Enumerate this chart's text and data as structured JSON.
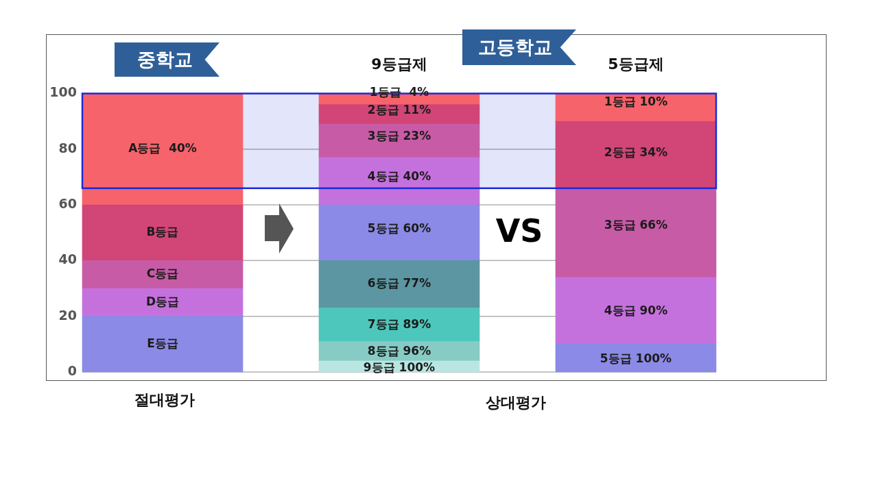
{
  "chart_data": {
    "type": "bar",
    "stacked": true,
    "categories": [
      null,
      "9등급제",
      "5등급제"
    ],
    "series": [
      {
        "values": [
          20,
          4,
          10
        ],
        "colors": [
          "#8b8ae6",
          "#b9e6e1",
          "#8b8ae6"
        ],
        "value_labels": [
          "E등급",
          null,
          null
        ]
      },
      {
        "values": [
          10,
          7,
          24
        ],
        "colors": [
          "#c571dd",
          "#87cbc5",
          "#c571dd"
        ],
        "value_labels": [
          "D등급",
          null,
          null
        ]
      },
      {
        "values": [
          10,
          12,
          32
        ],
        "colors": [
          "#c75ba6",
          "#4dc7bb",
          "#c75ba6"
        ],
        "value_labels": [
          "C등급",
          null,
          null
        ]
      },
      {
        "values": [
          20,
          17,
          24
        ],
        "colors": [
          "#d14677",
          "#5b96a2",
          "#d14677"
        ],
        "value_labels": [
          "B등급",
          null,
          null
        ]
      },
      {
        "values": [
          40,
          20,
          10
        ],
        "colors": [
          "#f7636b",
          "#8b8ae6",
          "#f7636b"
        ],
        "value_labels": [
          "A등급  40%",
          null,
          null
        ]
      },
      {
        "values": [
          null,
          17,
          null
        ],
        "colors": [
          null,
          "#c571dd",
          null
        ]
      },
      {
        "values": [
          null,
          12,
          null
        ],
        "colors": [
          null,
          "#c75ba6",
          null
        ]
      },
      {
        "values": [
          null,
          7,
          null
        ],
        "colors": [
          null,
          "#d14677",
          null
        ]
      },
      {
        "values": [
          null,
          4,
          null
        ],
        "colors": [
          null,
          "#f7636b",
          null
        ]
      }
    ],
    "ylim": [
      0,
      100
    ],
    "yticks": [
      0,
      20,
      40,
      60,
      80,
      100
    ],
    "grid": "y",
    "bands": [
      {
        "axis": "y",
        "from": 66,
        "to": 100,
        "color": "#1c2bd9"
      }
    ],
    "annotations": [
      "중학교",
      "고등학교",
      "절대평가",
      "상대평가",
      "VS",
      "1등급  4%",
      "2등급 11%",
      "3등급 23%",
      "4등급 40%",
      "5등급 60%",
      "6등급 77%",
      "7등급 89%",
      "8등급 96%",
      "9등급 100%",
      "1등급 10%",
      "2등급 34%",
      "3등급 66%",
      "4등급 90%",
      "5등급 100%"
    ]
  }
}
